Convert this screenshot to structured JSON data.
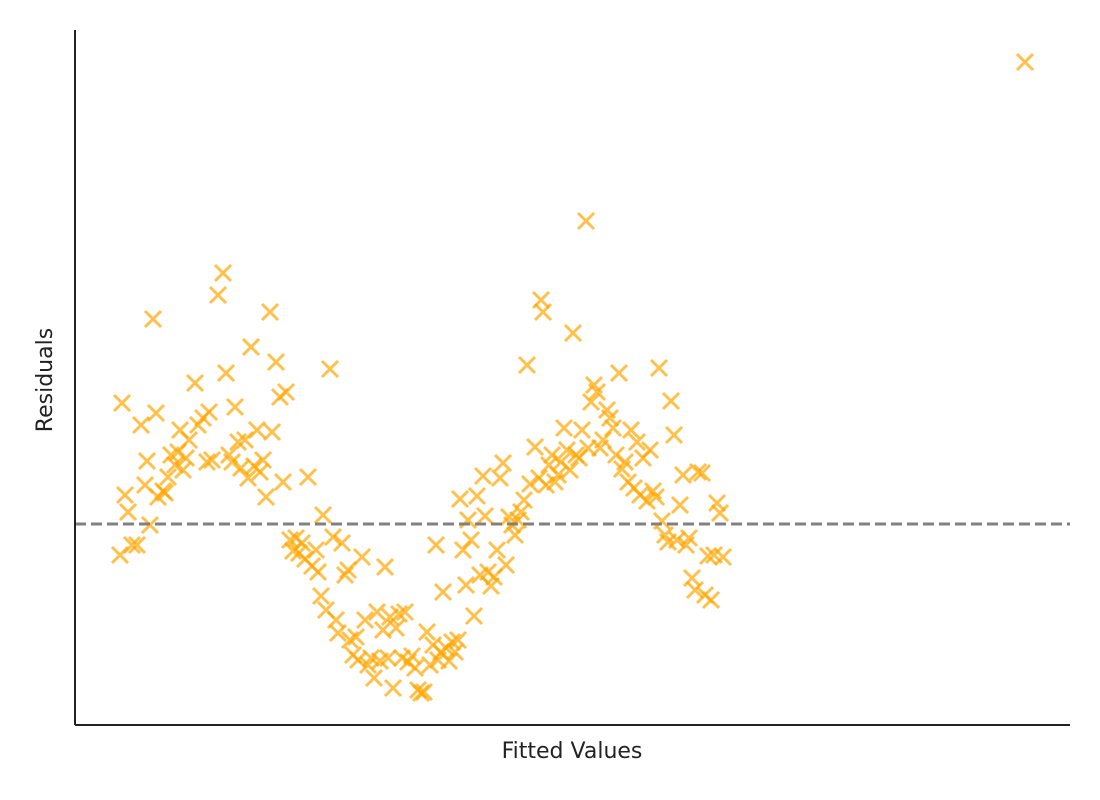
{
  "chart_data": {
    "type": "scatter",
    "xlabel": "Fitted Values",
    "ylabel": "Residuals",
    "xlim": [
      0,
      9.95
    ],
    "ylim": [
      -2.01,
      4.94
    ],
    "marker": "x",
    "color": "#ffa500",
    "alpha": 0.7,
    "reference_line": {
      "y": 0,
      "color": "#808080",
      "style": "dashed"
    },
    "x": [
      0.47,
      0.5,
      0.53,
      0.45,
      0.57,
      0.62,
      0.66,
      0.72,
      0.7,
      0.75,
      0.78,
      0.81,
      0.83,
      0.88,
      0.9,
      0.93,
      0.96,
      1.0,
      1.03,
      1.05,
      1.08,
      1.11,
      1.14,
      1.2,
      1.23,
      1.28,
      1.32,
      1.34,
      1.37,
      1.43,
      1.48,
      1.51,
      1.54,
      1.57,
      1.6,
      1.63,
      1.66,
      1.7,
      1.73,
      1.76,
      1.79,
      1.82,
      1.85,
      1.88,
      1.91,
      1.95,
      1.97,
      2.01,
      2.05,
      2.08,
      2.11,
      2.15,
      2.18,
      2.21,
      2.24,
      2.27,
      2.3,
      2.33,
      2.37,
      2.41,
      2.43,
      2.46,
      2.48,
      2.51,
      2.55,
      2.58,
      2.61,
      2.63,
      2.67,
      2.7,
      2.73,
      2.75,
      2.78,
      2.81,
      2.83,
      2.87,
      2.9,
      2.93,
      2.96,
      2.99,
      3.02,
      3.05,
      3.08,
      3.1,
      3.13,
      3.15,
      3.18,
      3.21,
      3.24,
      3.27,
      3.3,
      3.33,
      3.37,
      3.4,
      3.43,
      3.46,
      3.49,
      3.52,
      3.55,
      3.58,
      3.61,
      3.63,
      3.66,
      3.68,
      3.71,
      3.74,
      3.77,
      3.8,
      3.83,
      3.85,
      3.88,
      3.91,
      3.93,
      3.96,
      3.99,
      4.02,
      4.05,
      4.08,
      4.1,
      4.13,
      4.16,
      4.19,
      4.22,
      4.25,
      4.28,
      4.31,
      4.34,
      4.37,
      4.4,
      4.43,
      4.46,
      4.49,
      4.52,
      4.55,
      4.6,
      4.64,
      4.66,
      4.68,
      4.71,
      4.74,
      4.77,
      4.8,
      4.83,
      4.86,
      4.89,
      4.92,
      4.95,
      4.98,
      5.01,
      5.04,
      5.07,
      5.11,
      5.13,
      5.16,
      5.19,
      5.22,
      5.25,
      5.28,
      5.32,
      5.35,
      5.38,
      5.41,
      5.44,
      5.47,
      5.5,
      5.53,
      5.56,
      5.59,
      5.62,
      5.65,
      5.68,
      5.72,
      5.75,
      5.78,
      5.81,
      5.84,
      5.87,
      5.9,
      5.93,
      5.96,
      5.99,
      6.02,
      6.05,
      6.08,
      6.11,
      6.14,
      6.17,
      6.2,
      6.23,
      6.27,
      6.3,
      6.33,
      6.36,
      6.39,
      6.42,
      6.45,
      6.48,
      9.5
    ],
    "y": [
      1.21,
      0.29,
      0.12,
      -0.31,
      -0.21,
      -0.21,
      0.99,
      0.63,
      0.39,
      -0.01,
      2.05,
      1.11,
      0.27,
      0.33,
      0.31,
      0.47,
      0.69,
      0.59,
      0.72,
      0.94,
      0.54,
      0.66,
      0.84,
      1.41,
      0.99,
      1.06,
      0.62,
      1.12,
      0.64,
      2.29,
      2.51,
      1.51,
      0.69,
      0.62,
      1.17,
      0.82,
      0.56,
      0.84,
      0.46,
      1.77,
      0.58,
      0.94,
      0.52,
      0.64,
      0.27,
      2.12,
      0.92,
      1.62,
      1.27,
      0.42,
      1.32,
      -0.16,
      -0.27,
      -0.14,
      -0.29,
      -0.19,
      -0.35,
      0.47,
      -0.42,
      -0.26,
      -0.48,
      -0.72,
      0.09,
      -0.86,
      1.55,
      -0.13,
      -0.96,
      -1.09,
      -0.19,
      -0.51,
      -0.46,
      -1.16,
      -1.31,
      -1.13,
      -1.36,
      -0.33,
      -0.96,
      -1.41,
      -1.34,
      -1.54,
      -0.88,
      -1.37,
      -1.06,
      -0.43,
      -1.34,
      -0.93,
      -1.64,
      -1.04,
      -0.9,
      -1.34,
      -0.88,
      -1.38,
      -1.32,
      -1.44,
      -1.66,
      -1.69,
      -1.68,
      -1.08,
      -1.41,
      -1.21,
      -0.21,
      -1.36,
      -1.28,
      -0.68,
      -1.24,
      -1.37,
      -1.18,
      -1.28,
      -1.16,
      0.25,
      -0.26,
      -0.61,
      0.04,
      -0.16,
      -0.92,
      0.28,
      -0.51,
      0.48,
      0.08,
      -0.48,
      -0.62,
      -0.53,
      -0.26,
      0.46,
      0.61,
      -0.41,
      0.07,
      -0.01,
      -0.11,
      0.04,
      0.12,
      0.24,
      1.59,
      0.4,
      0.77,
      0.46,
      2.24,
      2.12,
      0.39,
      0.59,
      0.69,
      0.42,
      0.49,
      0.62,
      0.96,
      0.74,
      0.54,
      1.91,
      0.69,
      0.66,
      0.94,
      3.03,
      0.76,
      1.22,
      1.39,
      1.32,
      0.76,
      0.84,
      1.14,
      1.06,
      0.96,
      0.69,
      1.51,
      0.55,
      0.62,
      0.42,
      0.94,
      0.36,
      0.82,
      0.29,
      0.66,
      0.23,
      0.74,
      0.33,
      0.27,
      1.56,
      0.03,
      -0.11,
      -0.18,
      1.23,
      0.89,
      -0.16,
      0.19,
      0.49,
      -0.21,
      -0.14,
      -0.54,
      -0.66,
      0.52,
      0.51,
      -0.71,
      -0.32,
      -0.76,
      -0.31,
      0.21,
      0.11,
      -0.33,
      4.62
    ]
  }
}
